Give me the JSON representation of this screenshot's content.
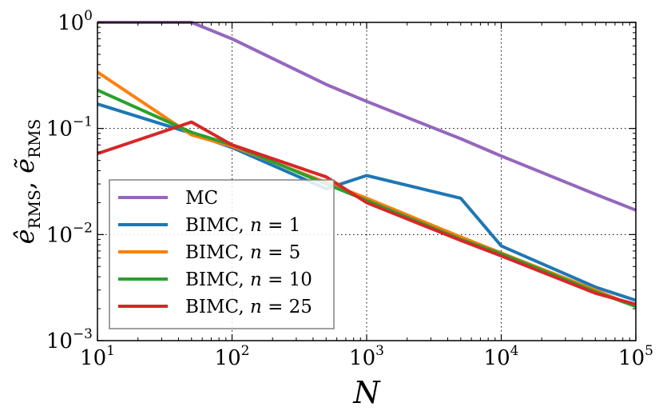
{
  "chart_data": {
    "type": "line",
    "xscale": "log",
    "yscale": "log",
    "xlabel": "N",
    "ylabel": "ê_RMS, ẽ_RMS",
    "ylabel_parts": {
      "e1": "ê",
      "sub1": "RMS",
      "sep": ", ",
      "e2": "ẽ",
      "sub2": "RMS"
    },
    "xlim": [
      10,
      100000
    ],
    "ylim": [
      0.001,
      1
    ],
    "grid": true,
    "legend_position": "lower-left",
    "x_ticks": [
      {
        "value": 10,
        "base": "10",
        "exp": "1"
      },
      {
        "value": 100,
        "base": "10",
        "exp": "2"
      },
      {
        "value": 1000,
        "base": "10",
        "exp": "3"
      },
      {
        "value": 10000,
        "base": "10",
        "exp": "4"
      },
      {
        "value": 100000,
        "base": "10",
        "exp": "5"
      }
    ],
    "y_ticks": [
      {
        "value": 0.001,
        "base": "10",
        "exp": "−3"
      },
      {
        "value": 0.01,
        "base": "10",
        "exp": "−2"
      },
      {
        "value": 0.1,
        "base": "10",
        "exp": "−1"
      },
      {
        "value": 1,
        "base": "10",
        "exp": "0"
      }
    ],
    "series": [
      {
        "name": "MC",
        "legend_label": "MC",
        "n_value": "",
        "color": "#9467bd",
        "x": [
          10,
          50,
          100,
          500,
          1000,
          5000,
          10000,
          50000,
          100000
        ],
        "y": [
          1.0,
          1.0,
          0.7,
          0.26,
          0.18,
          0.08,
          0.055,
          0.024,
          0.017
        ]
      },
      {
        "name": "BIMC, n = 1",
        "legend_label": "BIMC, ",
        "n_value": "1",
        "color": "#1f77b4",
        "x": [
          10,
          50,
          100,
          500,
          1000,
          5000,
          10000,
          50000,
          100000
        ],
        "y": [
          0.17,
          0.09,
          0.066,
          0.027,
          0.036,
          0.022,
          0.0078,
          0.0032,
          0.0024
        ]
      },
      {
        "name": "BIMC, n = 5",
        "legend_label": "BIMC, ",
        "n_value": "5",
        "color": "#ff7f0e",
        "x": [
          10,
          50,
          100,
          500,
          1000,
          5000,
          10000,
          50000,
          100000
        ],
        "y": [
          0.34,
          0.087,
          0.068,
          0.031,
          0.022,
          0.0095,
          0.0067,
          0.003,
          0.0021
        ]
      },
      {
        "name": "BIMC, n = 10",
        "legend_label": "BIMC, ",
        "n_value": "10",
        "color": "#2ca02c",
        "x": [
          10,
          50,
          100,
          500,
          1000,
          5000,
          10000,
          50000,
          100000
        ],
        "y": [
          0.23,
          0.092,
          0.07,
          0.03,
          0.021,
          0.009,
          0.0066,
          0.0029,
          0.0021
        ]
      },
      {
        "name": "BIMC, n = 25",
        "legend_label": "BIMC, ",
        "n_value": "25",
        "color": "#d62728",
        "x": [
          10,
          50,
          100,
          500,
          1000,
          5000,
          10000,
          50000,
          100000
        ],
        "y": [
          0.058,
          0.115,
          0.07,
          0.035,
          0.02,
          0.0088,
          0.0063,
          0.0028,
          0.0022
        ]
      }
    ]
  }
}
